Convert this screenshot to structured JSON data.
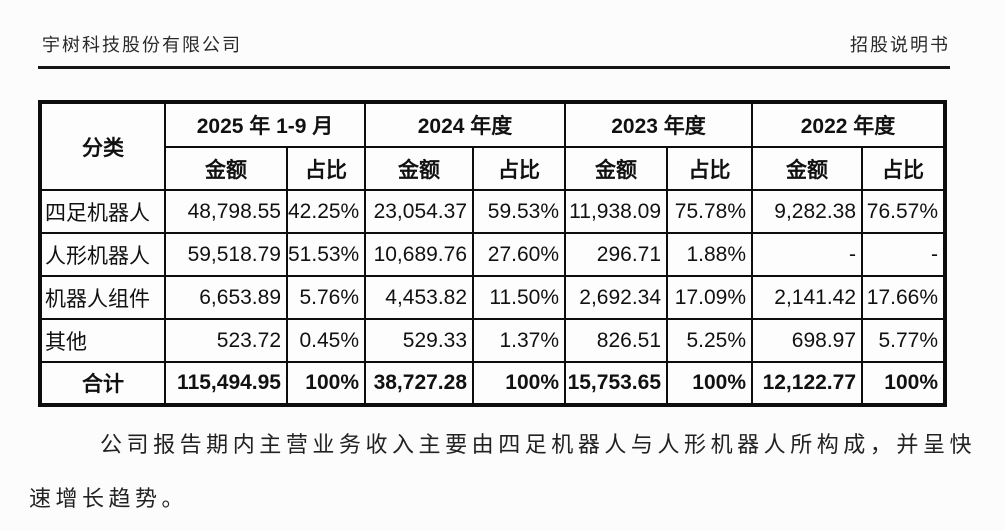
{
  "header": {
    "company": "宇树科技股份有限公司",
    "doc_type": "招股说明书"
  },
  "table": {
    "category_header": "分类",
    "periods": [
      {
        "label": "2025 年 1-9 月"
      },
      {
        "label": "2024 年度"
      },
      {
        "label": "2023 年度"
      },
      {
        "label": "2022 年度"
      }
    ],
    "metric_headers": [
      "金额",
      "占比"
    ],
    "rows": [
      {
        "category": "四足机器人",
        "values": [
          "48,798.55",
          "42.25%",
          "23,054.37",
          "59.53%",
          "11,938.09",
          "75.78%",
          "9,282.38",
          "76.57%"
        ]
      },
      {
        "category": "人形机器人",
        "values": [
          "59,518.79",
          "51.53%",
          "10,689.76",
          "27.60%",
          "296.71",
          "1.88%",
          "-",
          "-"
        ]
      },
      {
        "category": "机器人组件",
        "values": [
          "6,653.89",
          "5.76%",
          "4,453.82",
          "11.50%",
          "2,692.34",
          "17.09%",
          "2,141.42",
          "17.66%"
        ]
      },
      {
        "category": "其他",
        "values": [
          "523.72",
          "0.45%",
          "529.33",
          "1.37%",
          "826.51",
          "5.25%",
          "698.97",
          "5.77%"
        ]
      }
    ],
    "total_row": {
      "category": "合计",
      "values": [
        "115,494.95",
        "100%",
        "38,727.28",
        "100%",
        "15,753.65",
        "100%",
        "12,122.77",
        "100%"
      ]
    }
  },
  "paragraph": {
    "text": "公司报告期内主营业务收入主要由四足机器人与人形机器人所构成，并呈快速增长趋势。"
  },
  "colors": {
    "text": "#1a1a1a",
    "border": "#0d0d0d",
    "background": "#fcfcfc"
  }
}
